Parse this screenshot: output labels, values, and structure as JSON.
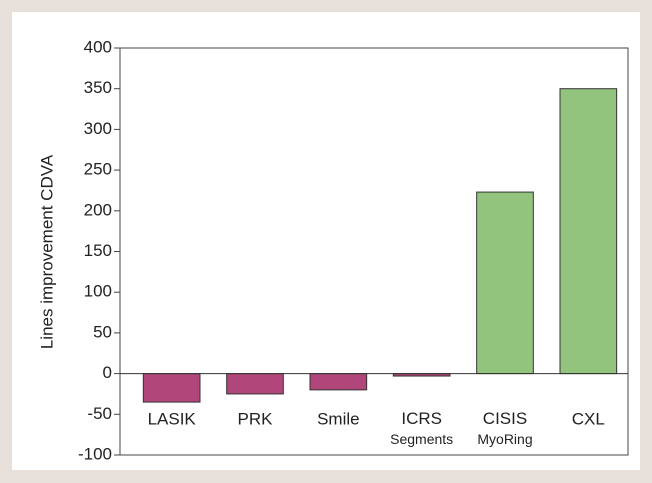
{
  "chart_data": {
    "type": "bar",
    "ylabel": "Lines improvement CDVA",
    "categories": [
      "LASIK",
      "PRK",
      "Smile",
      "ICRS\nSegments",
      "CISIS\nMyoRing",
      "CXL"
    ],
    "values": [
      -35,
      -25,
      -20,
      -3,
      223,
      350
    ],
    "colors": [
      "#b0467a",
      "#b0467a",
      "#b0467a",
      "#b0467a",
      "#93c47d",
      "#93c47d"
    ],
    "ylim": [
      -100,
      400
    ],
    "yticks": [
      -100,
      -50,
      0,
      50,
      100,
      150,
      200,
      250,
      300,
      350,
      400
    ],
    "grid": false
  }
}
